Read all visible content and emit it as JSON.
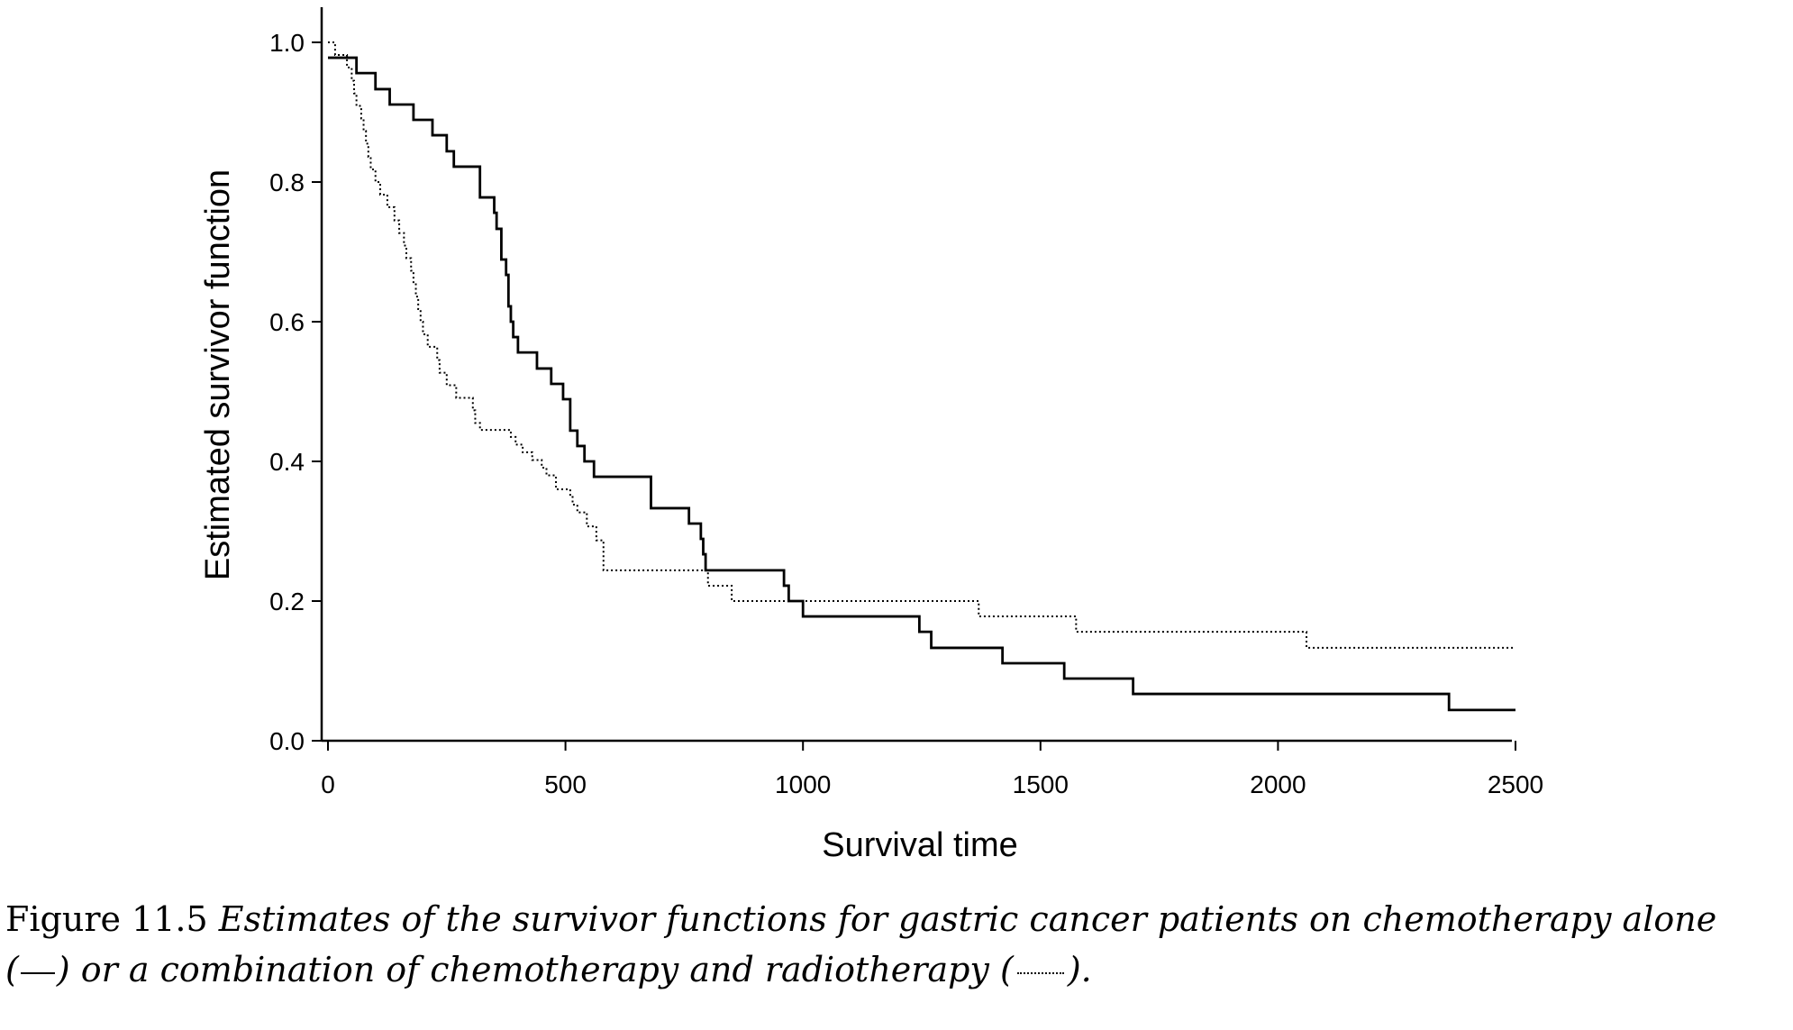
{
  "chart_data": {
    "type": "line",
    "step": true,
    "xlabel": "Survival time",
    "ylabel": "Estimated survivor function",
    "xlim": [
      0,
      2500
    ],
    "ylim": [
      0,
      1.0
    ],
    "x_ticks": [
      "0",
      "500",
      "1000",
      "1500",
      "2000",
      "2500"
    ],
    "y_ticks": [
      "0.0",
      "0.2",
      "0.4",
      "0.6",
      "0.8",
      "1.0"
    ],
    "grid": false,
    "series": [
      {
        "style": "solid",
        "x": [
          0,
          60,
          100,
          130,
          180,
          220,
          250,
          265,
          320,
          350,
          355,
          365,
          375,
          380,
          385,
          390,
          400,
          415,
          440,
          470,
          495,
          510,
          525,
          540,
          560,
          680,
          760,
          785,
          790,
          795,
          800,
          960,
          970,
          1000,
          1245,
          1270,
          1420,
          1550,
          1695,
          2360,
          2500
        ],
        "y": [
          0.978,
          0.956,
          0.933,
          0.911,
          0.889,
          0.867,
          0.844,
          0.822,
          0.778,
          0.756,
          0.733,
          0.689,
          0.667,
          0.622,
          0.6,
          0.578,
          0.556,
          0.556,
          0.533,
          0.511,
          0.489,
          0.444,
          0.422,
          0.4,
          0.378,
          0.333,
          0.311,
          0.289,
          0.267,
          0.244,
          0.244,
          0.222,
          0.2,
          0.178,
          0.156,
          0.133,
          0.111,
          0.089,
          0.067,
          0.044,
          0.044
        ]
      },
      {
        "style": "dotted",
        "x": [
          0,
          15,
          40,
          50,
          55,
          60,
          70,
          75,
          80,
          85,
          90,
          100,
          110,
          125,
          140,
          150,
          160,
          165,
          175,
          180,
          185,
          190,
          195,
          200,
          210,
          230,
          235,
          250,
          270,
          305,
          310,
          320,
          385,
          395,
          410,
          430,
          450,
          460,
          480,
          510,
          515,
          525,
          545,
          565,
          580,
          800,
          850,
          1370,
          1575,
          2060,
          2500
        ],
        "y": [
          1.0,
          0.982,
          0.964,
          0.945,
          0.927,
          0.909,
          0.891,
          0.873,
          0.855,
          0.836,
          0.818,
          0.8,
          0.782,
          0.764,
          0.745,
          0.727,
          0.709,
          0.691,
          0.673,
          0.655,
          0.636,
          0.618,
          0.6,
          0.582,
          0.564,
          0.545,
          0.527,
          0.509,
          0.491,
          0.473,
          0.455,
          0.445,
          0.435,
          0.424,
          0.413,
          0.402,
          0.391,
          0.38,
          0.36,
          0.349,
          0.338,
          0.327,
          0.307,
          0.287,
          0.244,
          0.222,
          0.2,
          0.178,
          0.156,
          0.133,
          0.133
        ]
      }
    ]
  },
  "caption": {
    "label": "Figure 11.5",
    "text_1": "Estimates of the survivor functions for gastric cancer patients on chemotherapy alone",
    "text_2": "(",
    "text_3": ") or a combination of chemotherapy and radiotherapy (",
    "text_4": ")."
  }
}
